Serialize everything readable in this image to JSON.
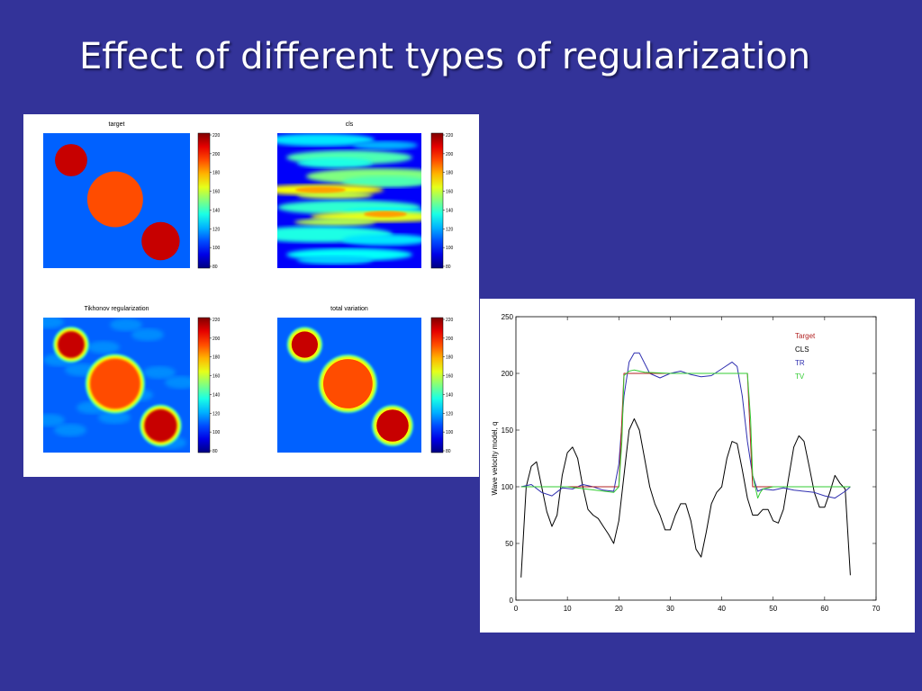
{
  "slide": {
    "title": "Effect of different types of regularization"
  },
  "colors": {
    "background": "#333399",
    "target_line": "#b22222",
    "cls_line": "#000000",
    "tr_line": "#2f2fb0",
    "tv_line": "#33cc33"
  },
  "images": {
    "colormap": "jet",
    "colorbar_ticks": [
      "220",
      "200",
      "180",
      "160",
      "140",
      "120",
      "100",
      "80"
    ],
    "panels": [
      {
        "title": "target",
        "kind": "target"
      },
      {
        "title": "cls",
        "kind": "cls"
      },
      {
        "title": "Tikhonov regularization",
        "kind": "tikhonov"
      },
      {
        "title": "total variation",
        "kind": "tv"
      }
    ]
  },
  "chart_data": {
    "type": "line",
    "title": "",
    "xlabel": "",
    "ylabel": "Wave velocity model, q",
    "xlim": [
      0,
      70
    ],
    "ylim": [
      0,
      250
    ],
    "xticks": [
      "0",
      "10",
      "20",
      "30",
      "40",
      "50",
      "60",
      "70"
    ],
    "yticks": [
      "0",
      "50",
      "100",
      "150",
      "200",
      "250"
    ],
    "legend_position": "top-right",
    "series": [
      {
        "name": "Target",
        "x": [
          1,
          20,
          20,
          21,
          21,
          45,
          45,
          46,
          46,
          65
        ],
        "y": [
          100,
          100,
          100,
          200,
          200,
          200,
          200,
          100,
          100,
          100
        ]
      },
      {
        "name": "CLS",
        "x": [
          1,
          2,
          3,
          4,
          5,
          6,
          7,
          8,
          9,
          10,
          11,
          12,
          13,
          14,
          15,
          16,
          17,
          18,
          19,
          20,
          21,
          22,
          23,
          24,
          25,
          26,
          27,
          28,
          29,
          30,
          31,
          32,
          33,
          34,
          35,
          36,
          37,
          38,
          39,
          40,
          41,
          42,
          43,
          44,
          45,
          46,
          47,
          48,
          49,
          50,
          51,
          52,
          53,
          54,
          55,
          56,
          57,
          58,
          59,
          60,
          61,
          62,
          63,
          64,
          65
        ],
        "y": [
          20,
          100,
          118,
          122,
          100,
          78,
          65,
          75,
          110,
          130,
          135,
          125,
          100,
          80,
          75,
          72,
          65,
          58,
          50,
          70,
          110,
          150,
          160,
          150,
          125,
          100,
          85,
          75,
          62,
          62,
          75,
          85,
          85,
          70,
          45,
          38,
          60,
          85,
          95,
          100,
          125,
          140,
          138,
          115,
          90,
          75,
          75,
          80,
          80,
          70,
          68,
          80,
          108,
          135,
          145,
          140,
          118,
          95,
          82,
          82,
          95,
          110,
          103,
          98,
          22
        ]
      },
      {
        "name": "TR",
        "x": [
          1,
          3,
          5,
          7,
          9,
          11,
          13,
          15,
          17,
          19,
          20,
          21,
          22,
          23,
          24,
          26,
          28,
          30,
          32,
          34,
          36,
          38,
          40,
          42,
          43,
          44,
          45,
          46,
          47,
          48,
          50,
          52,
          54,
          56,
          58,
          60,
          62,
          64,
          65
        ],
        "y": [
          100,
          102,
          95,
          92,
          99,
          98,
          102,
          100,
          97,
          96,
          120,
          180,
          210,
          218,
          218,
          200,
          196,
          200,
          202,
          199,
          197,
          198,
          204,
          210,
          206,
          180,
          140,
          110,
          96,
          98,
          97,
          99,
          97,
          96,
          95,
          92,
          90,
          96,
          100
        ]
      },
      {
        "name": "TV",
        "x": [
          1,
          10,
          19,
          20,
          20.6,
          21,
          22,
          23,
          25,
          30,
          35,
          40,
          44,
          45,
          45.6,
          46,
          47,
          47.5,
          48,
          50,
          55,
          60,
          65
        ],
        "y": [
          100,
          100,
          95,
          100,
          140,
          198,
          202,
          203,
          201,
          200,
          200,
          200,
          200,
          200,
          160,
          110,
          90,
          95,
          98,
          100,
          100,
          100,
          100
        ]
      }
    ]
  }
}
